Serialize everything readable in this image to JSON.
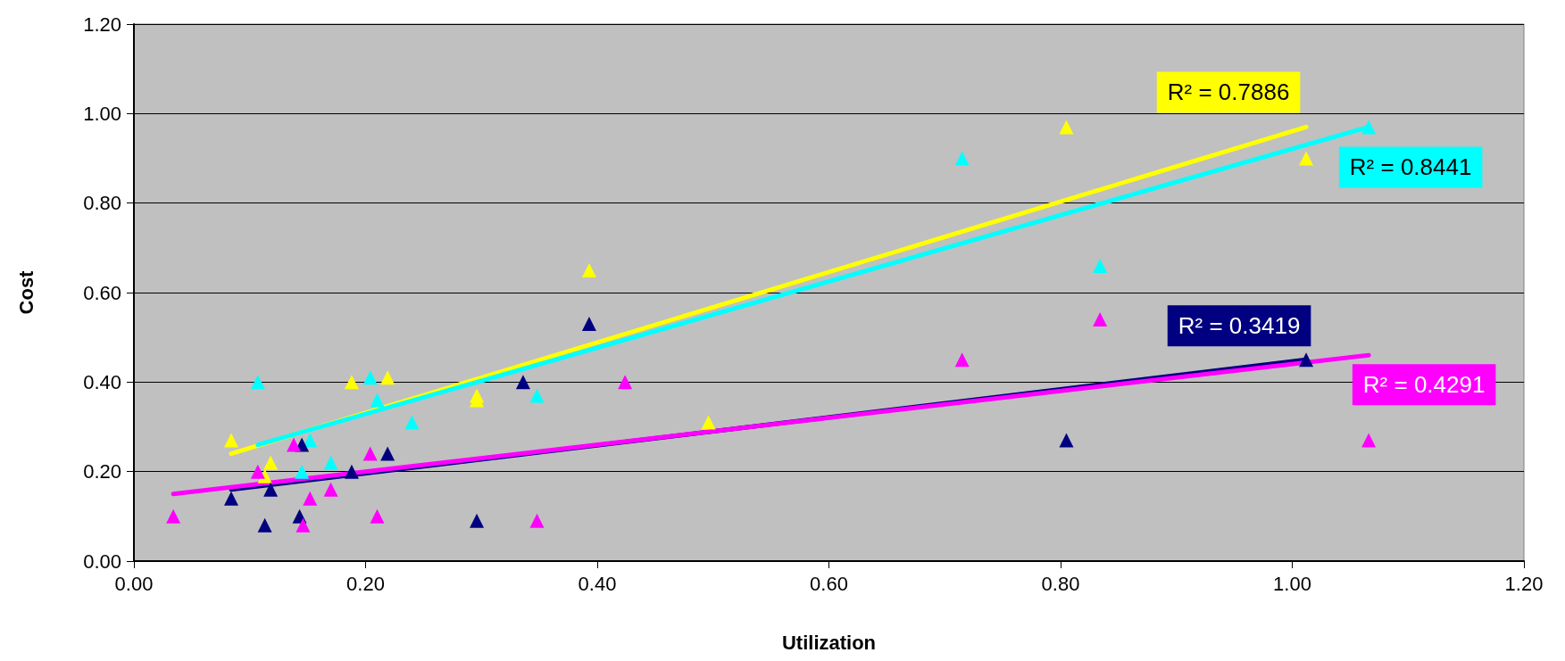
{
  "chart_data": {
    "type": "scatter",
    "xlabel": "Utilization",
    "ylabel": "Cost",
    "marker": "triangle",
    "grid": "y",
    "xlim": [
      0,
      1.2
    ],
    "ylim": [
      0,
      1.2
    ],
    "xticks": [
      {
        "value": 0,
        "label": "0.00"
      },
      {
        "value": 0.2,
        "label": "0.20"
      },
      {
        "value": 0.4,
        "label": "0.40"
      },
      {
        "value": 0.6,
        "label": "0.60"
      },
      {
        "value": 0.8,
        "label": "0.80"
      },
      {
        "value": 1,
        "label": "1.00"
      },
      {
        "value": 1.2,
        "label": "1.20"
      }
    ],
    "yticks": [
      {
        "value": 0,
        "label": "0.00"
      },
      {
        "value": 0.2,
        "label": "0.20"
      },
      {
        "value": 0.4,
        "label": "0.40"
      },
      {
        "value": 0.6,
        "label": "0.60"
      },
      {
        "value": 0.8,
        "label": "0.80"
      },
      {
        "value": 1,
        "label": "1.00"
      },
      {
        "value": 1.2,
        "label": "1.20"
      }
    ],
    "series": [
      {
        "color": "#ffff00",
        "x": [
          0.084,
          0.113,
          0.118,
          0.188,
          0.219,
          0.296,
          0.296,
          0.393,
          0.496,
          0.805,
          1.012
        ],
        "values": [
          0.27,
          0.19,
          0.22,
          0.4,
          0.41,
          0.37,
          0.36,
          0.65,
          0.31,
          0.97,
          0.9
        ]
      },
      {
        "color": "#00ffff",
        "x": [
          0.107,
          0.145,
          0.152,
          0.17,
          0.204,
          0.21,
          0.24,
          0.348,
          0.715,
          0.834,
          1.066
        ],
        "values": [
          0.4,
          0.2,
          0.27,
          0.22,
          0.41,
          0.36,
          0.31,
          0.37,
          0.9,
          0.66,
          0.97
        ]
      },
      {
        "color": "#000080",
        "x": [
          0.084,
          0.113,
          0.118,
          0.143,
          0.145,
          0.188,
          0.219,
          0.296,
          0.336,
          0.393,
          0.805,
          1.012
        ],
        "values": [
          0.14,
          0.08,
          0.16,
          0.1,
          0.26,
          0.2,
          0.24,
          0.09,
          0.4,
          0.53,
          0.27,
          0.45
        ]
      },
      {
        "color": "#ff00ff",
        "x": [
          0.034,
          0.107,
          0.138,
          0.146,
          0.152,
          0.17,
          0.204,
          0.21,
          0.348,
          0.424,
          0.715,
          0.834,
          1.066
        ],
        "values": [
          0.1,
          0.2,
          0.26,
          0.08,
          0.14,
          0.16,
          0.24,
          0.1,
          0.09,
          0.4,
          0.45,
          0.54,
          0.27
        ]
      },
      {
        "type": "line",
        "marker": "none",
        "color": "#ffff00",
        "x": [
          0.084,
          1.012
        ],
        "values": [
          0.24,
          0.97
        ]
      },
      {
        "type": "line",
        "marker": "none",
        "color": "#00ffff",
        "x": [
          0.107,
          1.066
        ],
        "values": [
          0.26,
          0.97
        ]
      },
      {
        "type": "line",
        "marker": "none",
        "color": "#000080",
        "x": [
          0.084,
          1.012
        ],
        "values": [
          0.16,
          0.45
        ]
      },
      {
        "type": "line",
        "marker": "none",
        "color": "#ff00ff",
        "x": [
          0.034,
          1.066
        ],
        "values": [
          0.15,
          0.46
        ]
      }
    ],
    "annotations": [
      "R² = 0.7886",
      "R² = 0.8441",
      "R² = 0.3419",
      "R² = 0.4291"
    ]
  }
}
